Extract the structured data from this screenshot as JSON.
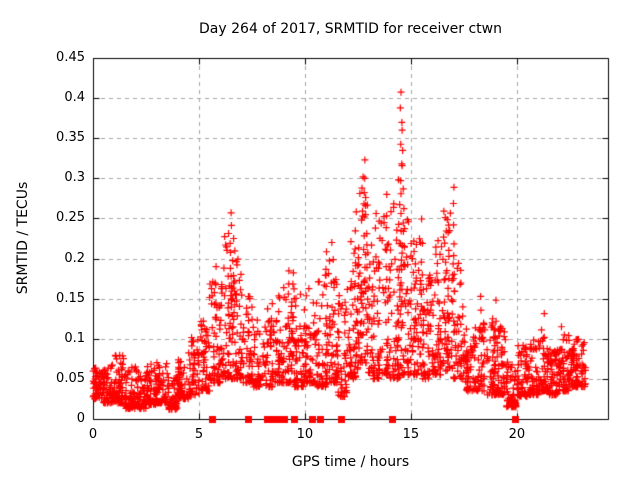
{
  "chart_data": {
    "type": "scatter",
    "title": "Day 264 of 2017, SRMTID for receiver ctwn",
    "xlabel": "GPS time / hours",
    "ylabel": "SRMTID / TECUs",
    "xlim": [
      0,
      24.3
    ],
    "ylim": [
      0,
      0.45
    ],
    "x_ticks": [
      0,
      5,
      10,
      15,
      20
    ],
    "x_tick_labels": [
      "0",
      "5",
      "10",
      "15",
      "20"
    ],
    "y_ticks": [
      0,
      0.05,
      0.1,
      0.15,
      0.2,
      0.25,
      0.3,
      0.35,
      0.4,
      0.45
    ],
    "y_tick_labels": [
      "0",
      "0.05",
      "0.1",
      "0.15",
      "0.2",
      "0.25",
      "0.3",
      "0.35",
      "0.4",
      "0.45"
    ],
    "grid": true,
    "legend": "none",
    "marker": {
      "shape": "plus",
      "size": 7,
      "color": "#ff0000"
    },
    "colors": {
      "background": "#ffffff",
      "axis": "#000000",
      "grid": "#a8a8a8",
      "text": "#000000"
    },
    "series_name": "SRMTID",
    "max_point": {
      "x": 14.55,
      "y": 0.412
    },
    "density_profile_columns": [
      "t_start",
      "t_end",
      "y_min",
      "y_max",
      "count"
    ],
    "density_profile": [
      [
        0.0,
        0.5,
        0.025,
        0.065,
        60
      ],
      [
        0.5,
        1.0,
        0.02,
        0.07,
        60
      ],
      [
        1.0,
        1.5,
        0.02,
        0.08,
        62
      ],
      [
        1.5,
        2.0,
        0.013,
        0.068,
        62
      ],
      [
        2.0,
        2.5,
        0.013,
        0.065,
        60
      ],
      [
        2.5,
        3.0,
        0.018,
        0.07,
        60
      ],
      [
        3.0,
        3.5,
        0.02,
        0.072,
        58
      ],
      [
        3.5,
        4.0,
        0.012,
        0.058,
        55
      ],
      [
        4.0,
        4.5,
        0.025,
        0.078,
        55
      ],
      [
        4.5,
        5.0,
        0.03,
        0.105,
        55
      ],
      [
        5.0,
        5.5,
        0.035,
        0.125,
        50
      ],
      [
        5.5,
        6.0,
        0.045,
        0.175,
        50
      ],
      [
        6.0,
        6.5,
        0.05,
        0.235,
        55
      ],
      [
        6.5,
        7.0,
        0.05,
        0.21,
        55
      ],
      [
        7.0,
        7.5,
        0.045,
        0.165,
        45
      ],
      [
        7.5,
        8.0,
        0.04,
        0.125,
        40
      ],
      [
        8.0,
        8.5,
        0.04,
        0.145,
        45
      ],
      [
        8.5,
        9.0,
        0.045,
        0.17,
        45
      ],
      [
        9.0,
        9.5,
        0.045,
        0.185,
        50
      ],
      [
        9.5,
        10.0,
        0.04,
        0.165,
        50
      ],
      [
        10.0,
        10.5,
        0.045,
        0.17,
        50
      ],
      [
        10.5,
        11.0,
        0.04,
        0.185,
        50
      ],
      [
        11.0,
        11.5,
        0.045,
        0.2,
        50
      ],
      [
        11.5,
        12.0,
        0.028,
        0.16,
        50
      ],
      [
        12.0,
        12.5,
        0.05,
        0.225,
        52
      ],
      [
        12.5,
        13.0,
        0.07,
        0.3,
        55
      ],
      [
        13.0,
        13.5,
        0.05,
        0.22,
        50
      ],
      [
        13.5,
        14.0,
        0.055,
        0.26,
        50
      ],
      [
        14.0,
        14.5,
        0.05,
        0.27,
        50
      ],
      [
        14.5,
        15.0,
        0.055,
        0.25,
        52
      ],
      [
        15.0,
        15.5,
        0.055,
        0.235,
        50
      ],
      [
        15.5,
        16.0,
        0.05,
        0.185,
        50
      ],
      [
        16.0,
        16.5,
        0.055,
        0.215,
        50
      ],
      [
        16.5,
        17.0,
        0.06,
        0.26,
        55
      ],
      [
        17.0,
        17.5,
        0.05,
        0.21,
        50
      ],
      [
        17.5,
        18.0,
        0.035,
        0.115,
        48
      ],
      [
        18.0,
        18.5,
        0.035,
        0.12,
        48
      ],
      [
        18.5,
        19.0,
        0.03,
        0.125,
        50
      ],
      [
        19.0,
        19.5,
        0.03,
        0.115,
        52
      ],
      [
        19.5,
        20.0,
        0.015,
        0.075,
        55
      ],
      [
        20.0,
        20.5,
        0.028,
        0.095,
        55
      ],
      [
        20.5,
        21.0,
        0.03,
        0.1,
        55
      ],
      [
        21.0,
        21.5,
        0.035,
        0.115,
        55
      ],
      [
        21.5,
        22.0,
        0.03,
        0.09,
        55
      ],
      [
        22.0,
        22.5,
        0.035,
        0.105,
        60
      ],
      [
        22.5,
        23.25,
        0.04,
        0.1,
        80
      ]
    ],
    "peak_columns_columns": [
      "t",
      "y_base",
      "y_top",
      "count"
    ],
    "peak_columns": [
      [
        5.75,
        0.08,
        0.19,
        6
      ],
      [
        6.5,
        0.1,
        0.257,
        10
      ],
      [
        6.65,
        0.12,
        0.225,
        8
      ],
      [
        9.4,
        0.08,
        0.185,
        6
      ],
      [
        11.05,
        0.08,
        0.21,
        7
      ],
      [
        11.3,
        0.09,
        0.22,
        6
      ],
      [
        12.4,
        0.1,
        0.26,
        8
      ],
      [
        12.78,
        0.12,
        0.323,
        12
      ],
      [
        12.88,
        0.14,
        0.3,
        8
      ],
      [
        13.3,
        0.1,
        0.26,
        7
      ],
      [
        13.85,
        0.12,
        0.28,
        8
      ],
      [
        14.45,
        0.1,
        0.3,
        8
      ],
      [
        14.55,
        0.12,
        0.412,
        14
      ],
      [
        14.62,
        0.14,
        0.36,
        10
      ],
      [
        15.25,
        0.1,
        0.22,
        6
      ],
      [
        15.5,
        0.09,
        0.25,
        7
      ],
      [
        16.3,
        0.09,
        0.225,
        6
      ],
      [
        16.75,
        0.1,
        0.235,
        6
      ],
      [
        17.0,
        0.11,
        0.29,
        9
      ],
      [
        18.35,
        0.06,
        0.155,
        5
      ],
      [
        19.05,
        0.05,
        0.148,
        5
      ],
      [
        21.3,
        0.05,
        0.132,
        4
      ],
      [
        22.15,
        0.06,
        0.115,
        5
      ]
    ],
    "zero_marker_hours": [
      5.6,
      7.3,
      8.2,
      8.45,
      8.55,
      8.65,
      8.75,
      8.85,
      9.0,
      9.5,
      10.35,
      10.7,
      11.7,
      14.1,
      19.9
    ],
    "seed": 2017264
  }
}
